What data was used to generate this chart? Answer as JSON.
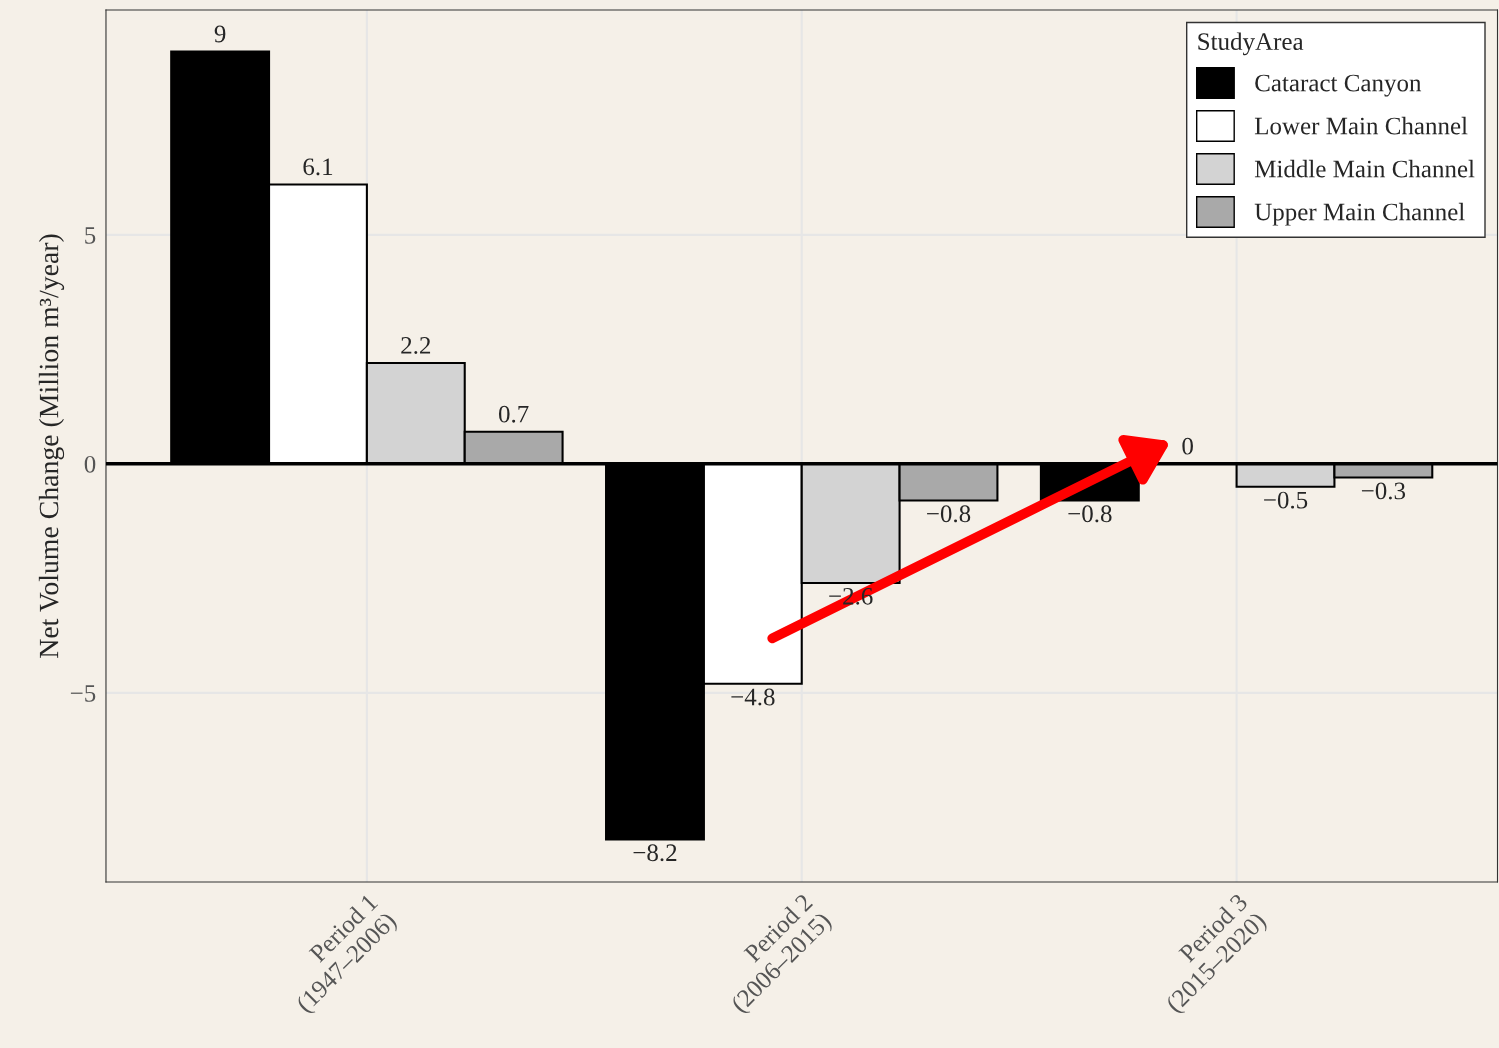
{
  "chart_data": {
    "type": "bar",
    "ylabel": "Net Volume Change (Million m³/year)",
    "legend_title": "StudyArea",
    "categories": [
      "Period 1\n(1947–2006)",
      "Period 2\n(2006–2015)",
      "Period 3\n(2015–2020)"
    ],
    "series": [
      {
        "name": "Cataract Canyon",
        "color": "#000000",
        "values": [
          9,
          -8.2,
          -0.8
        ],
        "value_labels": [
          "9",
          "−8.2",
          "−0.8"
        ]
      },
      {
        "name": "Lower Main Channel",
        "color": "#ffffff",
        "values": [
          6.1,
          -4.8,
          0
        ],
        "value_labels": [
          "6.1",
          "−4.8",
          "0"
        ]
      },
      {
        "name": "Middle Main Channel",
        "color": "#d3d3d3",
        "values": [
          2.2,
          -2.6,
          -0.5
        ],
        "value_labels": [
          "2.2",
          "−2.6",
          "−0.5"
        ]
      },
      {
        "name": "Upper Main Channel",
        "color": "#a9a9a9",
        "values": [
          0.7,
          -0.8,
          -0.3
        ],
        "value_labels": [
          "0.7",
          "−0.8",
          "−0.3"
        ]
      }
    ],
    "ylim": [
      -9.13,
      9.91
    ],
    "yticks": [
      {
        "value": -5,
        "label": "−5"
      },
      0,
      5
    ],
    "grid": true,
    "legend": "top right",
    "ref_lines": [
      {
        "axis": "y",
        "value": 0,
        "color": "#000000"
      }
    ]
  }
}
